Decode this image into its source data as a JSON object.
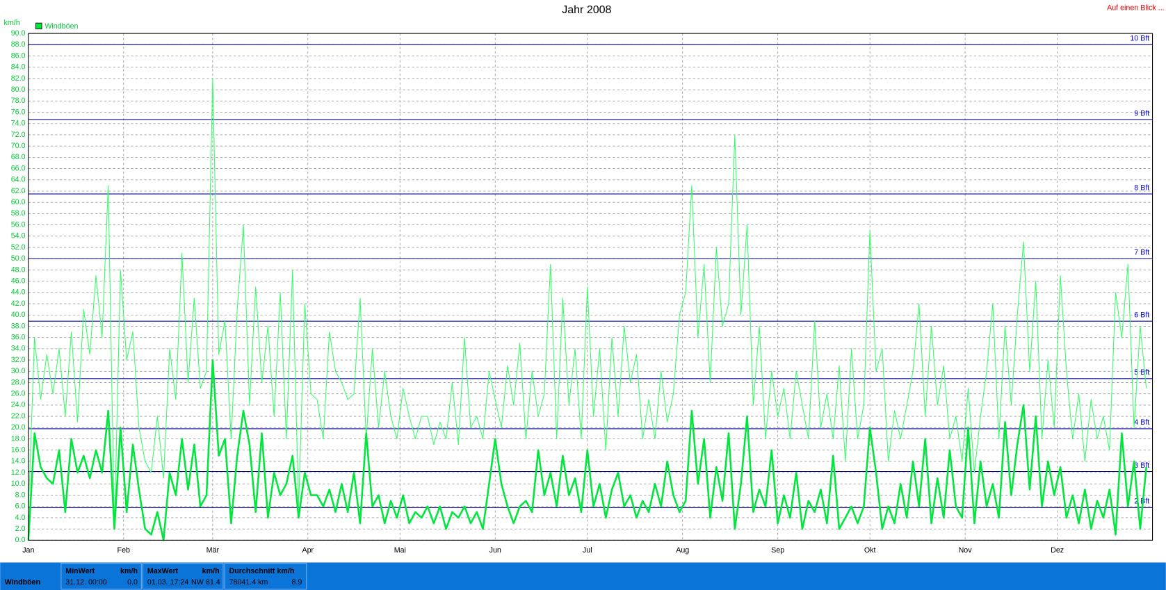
{
  "chart_data": {
    "type": "line",
    "title": "Jahr 2008",
    "y_label": "km/h",
    "x": [
      1,
      3,
      5,
      7,
      9,
      11,
      13,
      15,
      17,
      19,
      21,
      23,
      25,
      27,
      29,
      31,
      33,
      35,
      37,
      39,
      41,
      43,
      45,
      47,
      49,
      51,
      53,
      55,
      57,
      59,
      61,
      63,
      65,
      67,
      69,
      71,
      73,
      75,
      77,
      79,
      81,
      83,
      85,
      87,
      89,
      91,
      93,
      95,
      97,
      99,
      101,
      103,
      105,
      107,
      109,
      111,
      113,
      115,
      117,
      119,
      121,
      123,
      125,
      127,
      129,
      131,
      133,
      135,
      137,
      139,
      141,
      143,
      145,
      147,
      149,
      151,
      153,
      155,
      157,
      159,
      161,
      163,
      165,
      167,
      169,
      171,
      173,
      175,
      177,
      179,
      181,
      183,
      185,
      187,
      189,
      191,
      193,
      195,
      197,
      199,
      201,
      203,
      205,
      207,
      209,
      211,
      213,
      215,
      217,
      219,
      221,
      223,
      225,
      227,
      229,
      231,
      233,
      235,
      237,
      239,
      241,
      243,
      245,
      247,
      249,
      251,
      253,
      255,
      257,
      259,
      261,
      263,
      265,
      267,
      269,
      271,
      273,
      275,
      277,
      279,
      281,
      283,
      285,
      287,
      289,
      291,
      293,
      295,
      297,
      299,
      301,
      303,
      305,
      307,
      309,
      311,
      313,
      315,
      317,
      319,
      321,
      323,
      325,
      327,
      329,
      331,
      333,
      335,
      337,
      339,
      341,
      343,
      345,
      347,
      349,
      351,
      353,
      355,
      357,
      359,
      361,
      363,
      365
    ],
    "series": [
      {
        "name": "Windböen",
        "color": "#33ff66",
        "width": 1,
        "values": [
          5,
          36,
          25,
          33,
          26,
          34,
          22,
          37,
          21,
          41,
          33,
          47,
          36,
          63,
          2,
          48,
          32,
          37,
          20,
          14,
          12,
          22,
          11,
          34,
          25,
          51,
          28,
          43,
          27,
          30,
          82,
          33,
          39,
          18,
          41,
          56,
          24,
          45,
          28,
          38,
          22,
          44,
          18,
          48,
          6,
          42,
          26,
          25,
          18,
          37,
          30,
          28,
          25,
          26,
          43,
          18,
          34,
          20,
          30,
          22,
          18,
          27,
          22,
          18,
          22,
          22,
          17,
          21,
          18,
          28,
          17,
          36,
          20,
          22,
          18,
          30,
          25,
          20,
          31,
          24,
          35,
          18,
          30,
          22,
          26,
          49,
          18,
          43,
          24,
          34,
          18,
          45,
          22,
          34,
          16,
          36,
          22,
          38,
          28,
          33,
          18,
          25,
          18,
          30,
          21,
          26,
          40,
          44,
          63,
          36,
          49,
          28,
          52,
          38,
          42,
          72,
          40,
          56,
          24,
          38,
          18,
          30,
          22,
          27,
          18,
          30,
          24,
          18,
          39,
          20,
          26,
          18,
          31,
          14,
          34,
          18,
          24,
          55,
          30,
          34,
          14,
          23,
          18,
          24,
          30,
          42,
          22,
          38,
          24,
          31,
          18,
          22,
          14,
          27,
          12,
          22,
          30,
          42,
          18,
          38,
          24,
          40,
          53,
          30,
          46,
          18,
          32,
          20,
          47,
          30,
          18,
          26,
          14,
          25,
          18,
          22,
          16,
          44,
          36,
          49,
          20,
          38,
          27
        ]
      },
      {
        "color": "#00e63c",
        "width": 2.4,
        "values": [
          0,
          19,
          13,
          11,
          10,
          16,
          5,
          18,
          12,
          15,
          11,
          16,
          12,
          23,
          2,
          20,
          5,
          17,
          9,
          2,
          1,
          5,
          0,
          12,
          8,
          18,
          9,
          17,
          6,
          8,
          32,
          15,
          18,
          3,
          15,
          23,
          17,
          5,
          19,
          4,
          12,
          8,
          10,
          15,
          4,
          12,
          8,
          8,
          6,
          9,
          5,
          10,
          5,
          12,
          3,
          19,
          6,
          8,
          3,
          7,
          4,
          8,
          3,
          5,
          4,
          6,
          3,
          6,
          2,
          5,
          4,
          6,
          3,
          5,
          2,
          10,
          18,
          10,
          6,
          3,
          6,
          7,
          5,
          16,
          8,
          12,
          6,
          15,
          8,
          11,
          5,
          16,
          6,
          10,
          4,
          9,
          12,
          6,
          8,
          4,
          7,
          5,
          10,
          6,
          14,
          8,
          5,
          7,
          23,
          10,
          18,
          4,
          13,
          7,
          19,
          2,
          10,
          22,
          5,
          9,
          6,
          16,
          3,
          8,
          4,
          12,
          2,
          7,
          5,
          9,
          3,
          15,
          2,
          4,
          6,
          3,
          6,
          20,
          12,
          2,
          6,
          3,
          10,
          4,
          14,
          6,
          18,
          3,
          11,
          4,
          16,
          6,
          4,
          20,
          3,
          14,
          6,
          10,
          4,
          21,
          8,
          17,
          24,
          9,
          22,
          6,
          14,
          8,
          13,
          4,
          8,
          3,
          9,
          2,
          7,
          4,
          9,
          1,
          19,
          6,
          14,
          2,
          13
        ]
      }
    ],
    "xlim": [
      1,
      367
    ],
    "xticks": [
      {
        "value": 1,
        "label": "Jan"
      },
      {
        "value": 32,
        "label": "Feb"
      },
      {
        "value": 61,
        "label": "Mär"
      },
      {
        "value": 92,
        "label": "Apr"
      },
      {
        "value": 122,
        "label": "Mai"
      },
      {
        "value": 153,
        "label": "Jun"
      },
      {
        "value": 183,
        "label": "Jul"
      },
      {
        "value": 214,
        "label": "Aug"
      },
      {
        "value": 245,
        "label": "Sep"
      },
      {
        "value": 275,
        "label": "Okt"
      },
      {
        "value": 306,
        "label": "Nov"
      },
      {
        "value": 336,
        "label": "Dez"
      }
    ],
    "ylim": [
      0,
      90
    ],
    "yticks": [
      {
        "value": 0,
        "label": "0.0"
      },
      {
        "value": 2,
        "label": "2.0"
      },
      {
        "value": 4,
        "label": "4.0"
      },
      {
        "value": 6,
        "label": "6.0"
      },
      {
        "value": 8,
        "label": "8.0"
      },
      {
        "value": 10,
        "label": "10.0"
      },
      {
        "value": 12,
        "label": "12.0"
      },
      {
        "value": 14,
        "label": "14.0"
      },
      {
        "value": 16,
        "label": "16.0"
      },
      {
        "value": 18,
        "label": "18.0"
      },
      {
        "value": 20,
        "label": "20.0"
      },
      {
        "value": 22,
        "label": "22.0"
      },
      {
        "value": 24,
        "label": "24.0"
      },
      {
        "value": 26,
        "label": "26.0"
      },
      {
        "value": 28,
        "label": "28.0"
      },
      {
        "value": 30,
        "label": "30.0"
      },
      {
        "value": 32,
        "label": "32.0"
      },
      {
        "value": 34,
        "label": "34.0"
      },
      {
        "value": 36,
        "label": "36.0"
      },
      {
        "value": 38,
        "label": "38.0"
      },
      {
        "value": 40,
        "label": "40.0"
      },
      {
        "value": 42,
        "label": "42.0"
      },
      {
        "value": 44,
        "label": "44.0"
      },
      {
        "value": 46,
        "label": "46.0"
      },
      {
        "value": 48,
        "label": "48.0"
      },
      {
        "value": 50,
        "label": "50.0"
      },
      {
        "value": 52,
        "label": "52.0"
      },
      {
        "value": 54,
        "label": "54.0"
      },
      {
        "value": 56,
        "label": "56.0"
      },
      {
        "value": 58,
        "label": "58.0"
      },
      {
        "value": 60,
        "label": "60.0"
      },
      {
        "value": 62,
        "label": "62.0"
      },
      {
        "value": 64,
        "label": "64.0"
      },
      {
        "value": 66,
        "label": "66.0"
      },
      {
        "value": 68,
        "label": "68.0"
      },
      {
        "value": 70,
        "label": "70.0"
      },
      {
        "value": 72,
        "label": "72.0"
      },
      {
        "value": 74,
        "label": "74.0"
      },
      {
        "value": 76,
        "label": "76.0"
      },
      {
        "value": 78,
        "label": "78.0"
      },
      {
        "value": 80,
        "label": "80.0"
      },
      {
        "value": 82,
        "label": "82.0"
      },
      {
        "value": 84,
        "label": "84.0"
      },
      {
        "value": 86,
        "label": "86.0"
      },
      {
        "value": 88,
        "label": "88.0"
      },
      {
        "value": 90,
        "label": "90.0"
      }
    ],
    "grid": true,
    "reference_lines": [
      {
        "value": 5.8,
        "label": "2 Bft"
      },
      {
        "value": 12.2,
        "label": "3 Bft"
      },
      {
        "value": 19.8,
        "label": "4 Bft"
      },
      {
        "value": 28.7,
        "label": "5 Bft"
      },
      {
        "value": 38.9,
        "label": "6 Bft"
      },
      {
        "value": 50,
        "label": "7 Bft"
      },
      {
        "value": 61.5,
        "label": "8 Bft"
      },
      {
        "value": 74.7,
        "label": "9 Bft"
      },
      {
        "value": 88,
        "label": "10 Bft"
      }
    ]
  },
  "header_link": "Auf einen Blick ...",
  "footer": {
    "series": "Windböen",
    "min": {
      "title": "MinWert",
      "unit": "km/h",
      "date": "31.12.  00:00",
      "value": "0.0"
    },
    "max": {
      "title": "MaxWert",
      "unit": "km/h",
      "date": "01.03.  17:24",
      "dir": "NW",
      "value": "81.4"
    },
    "avg": {
      "title": "Durchschnitt km/h",
      "total": "78041.4 km",
      "value": "8.9"
    }
  }
}
